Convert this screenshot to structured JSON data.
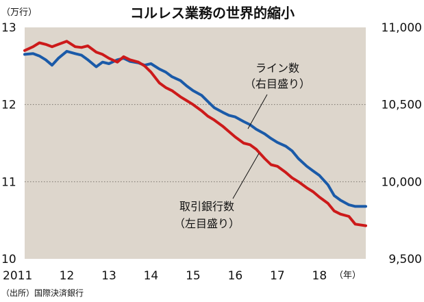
{
  "chart_data": {
    "type": "line",
    "title": "コルレス業務の世界的縮小",
    "left_axis": {
      "unit_label": "（万行）",
      "ylim": [
        10,
        13
      ],
      "ticks": [
        "13",
        "12",
        "11",
        "10"
      ]
    },
    "right_axis": {
      "ylim": [
        9500,
        11000
      ],
      "ticks": [
        "11,000",
        "10,500",
        "10,000",
        "9,500"
      ]
    },
    "x_axis": {
      "range": [
        2011,
        2019.1
      ],
      "ticks": [
        {
          "x": 2011,
          "label": "2011"
        },
        {
          "x": 2012,
          "label": "12"
        },
        {
          "x": 2013,
          "label": "13"
        },
        {
          "x": 2014,
          "label": "14"
        },
        {
          "x": 2015,
          "label": "15"
        },
        {
          "x": 2016,
          "label": "16"
        },
        {
          "x": 2017,
          "label": "17"
        },
        {
          "x": 2018,
          "label": "18"
        }
      ],
      "unit_label": "（年）"
    },
    "gridlines": [
      12,
      11
    ],
    "series": [
      {
        "name_line1": "ライン数",
        "name_line2": "（右目盛り）",
        "axis": "right",
        "color": "#1a5aa8",
        "points": [
          [
            2011.0,
            10825
          ],
          [
            2011.2,
            10830
          ],
          [
            2011.35,
            10815
          ],
          [
            2011.5,
            10790
          ],
          [
            2011.65,
            10755
          ],
          [
            2011.8,
            10800
          ],
          [
            2012.0,
            10845
          ],
          [
            2012.2,
            10830
          ],
          [
            2012.35,
            10820
          ],
          [
            2012.5,
            10790
          ],
          [
            2012.7,
            10745
          ],
          [
            2012.85,
            10775
          ],
          [
            2013.0,
            10765
          ],
          [
            2013.2,
            10790
          ],
          [
            2013.35,
            10800
          ],
          [
            2013.5,
            10780
          ],
          [
            2013.7,
            10770
          ],
          [
            2013.85,
            10755
          ],
          [
            2014.0,
            10765
          ],
          [
            2014.2,
            10730
          ],
          [
            2014.35,
            10710
          ],
          [
            2014.5,
            10680
          ],
          [
            2014.7,
            10655
          ],
          [
            2014.85,
            10620
          ],
          [
            2015.0,
            10590
          ],
          [
            2015.2,
            10560
          ],
          [
            2015.35,
            10520
          ],
          [
            2015.5,
            10480
          ],
          [
            2015.7,
            10450
          ],
          [
            2015.85,
            10430
          ],
          [
            2016.0,
            10420
          ],
          [
            2016.2,
            10390
          ],
          [
            2016.35,
            10370
          ],
          [
            2016.5,
            10340
          ],
          [
            2016.7,
            10310
          ],
          [
            2016.85,
            10280
          ],
          [
            2017.0,
            10255
          ],
          [
            2017.2,
            10230
          ],
          [
            2017.35,
            10200
          ],
          [
            2017.5,
            10150
          ],
          [
            2017.7,
            10100
          ],
          [
            2017.85,
            10070
          ],
          [
            2018.0,
            10040
          ],
          [
            2018.2,
            9980
          ],
          [
            2018.35,
            9910
          ],
          [
            2018.5,
            9880
          ],
          [
            2018.7,
            9850
          ],
          [
            2018.85,
            9840
          ],
          [
            2019.1,
            9840
          ]
        ]
      },
      {
        "name_line1": "取引銀行数",
        "name_line2": "（左目盛り）",
        "axis": "left",
        "color": "#cc1a1a",
        "points": [
          [
            2011.0,
            12.7
          ],
          [
            2011.2,
            12.75
          ],
          [
            2011.35,
            12.8
          ],
          [
            2011.5,
            12.78
          ],
          [
            2011.65,
            12.75
          ],
          [
            2011.8,
            12.78
          ],
          [
            2012.0,
            12.82
          ],
          [
            2012.2,
            12.75
          ],
          [
            2012.35,
            12.74
          ],
          [
            2012.5,
            12.76
          ],
          [
            2012.7,
            12.68
          ],
          [
            2012.85,
            12.65
          ],
          [
            2013.0,
            12.6
          ],
          [
            2013.2,
            12.55
          ],
          [
            2013.35,
            12.62
          ],
          [
            2013.5,
            12.58
          ],
          [
            2013.7,
            12.55
          ],
          [
            2013.85,
            12.5
          ],
          [
            2014.0,
            12.42
          ],
          [
            2014.2,
            12.28
          ],
          [
            2014.35,
            12.22
          ],
          [
            2014.5,
            12.18
          ],
          [
            2014.7,
            12.1
          ],
          [
            2014.85,
            12.05
          ],
          [
            2015.0,
            12.0
          ],
          [
            2015.2,
            11.92
          ],
          [
            2015.35,
            11.85
          ],
          [
            2015.5,
            11.8
          ],
          [
            2015.7,
            11.72
          ],
          [
            2015.85,
            11.65
          ],
          [
            2016.0,
            11.58
          ],
          [
            2016.2,
            11.5
          ],
          [
            2016.35,
            11.48
          ],
          [
            2016.5,
            11.42
          ],
          [
            2016.7,
            11.3
          ],
          [
            2016.85,
            11.22
          ],
          [
            2017.0,
            11.2
          ],
          [
            2017.2,
            11.12
          ],
          [
            2017.35,
            11.05
          ],
          [
            2017.5,
            11.0
          ],
          [
            2017.7,
            10.92
          ],
          [
            2017.85,
            10.87
          ],
          [
            2018.0,
            10.8
          ],
          [
            2018.2,
            10.72
          ],
          [
            2018.35,
            10.62
          ],
          [
            2018.5,
            10.58
          ],
          [
            2018.7,
            10.55
          ],
          [
            2018.85,
            10.45
          ],
          [
            2019.1,
            10.43
          ]
        ]
      }
    ],
    "background_color": "#ddd6cc",
    "source": "（出所）国際決済銀行"
  }
}
